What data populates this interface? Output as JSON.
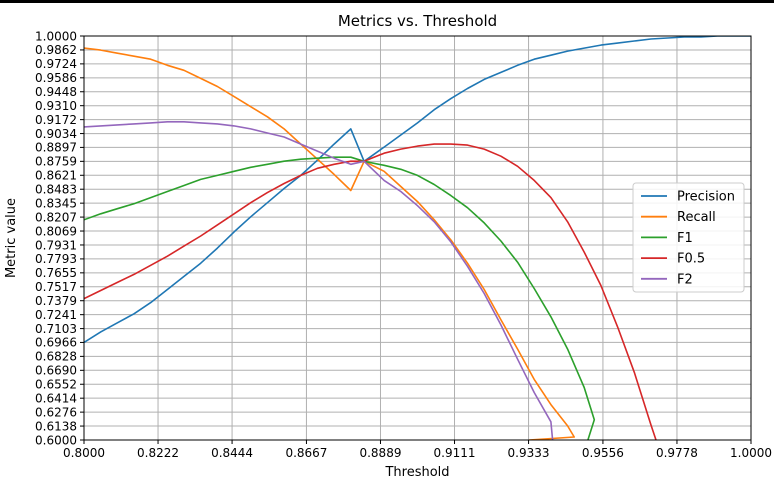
{
  "chart_data": {
    "type": "line",
    "title": "Metrics vs. Threshold",
    "xlabel": "Threshold",
    "ylabel": "Metric value",
    "xlim": [
      0.8,
      1.0
    ],
    "ylim": [
      0.6,
      1.0
    ],
    "grid": true,
    "legend_position": "center-right",
    "x_ticks": [
      "0.8000",
      "0.8222",
      "0.8444",
      "0.8667",
      "0.8889",
      "0.9111",
      "0.9333",
      "0.9556",
      "0.9778",
      "1.0000"
    ],
    "y_ticks": [
      "0.6000",
      "0.6138",
      "0.6276",
      "0.6414",
      "0.6552",
      "0.6690",
      "0.6828",
      "0.6966",
      "0.7103",
      "0.7241",
      "0.7379",
      "0.7517",
      "0.7655",
      "0.7793",
      "0.7931",
      "0.8069",
      "0.8207",
      "0.8345",
      "0.8483",
      "0.8621",
      "0.8759",
      "0.8897",
      "0.9034",
      "0.9172",
      "0.9310",
      "0.9448",
      "0.9586",
      "0.9724",
      "0.9862",
      "1.0000"
    ],
    "series": [
      {
        "name": "Precision",
        "color": "#1f77b4",
        "points": [
          [
            0.8,
            0.6966
          ],
          [
            0.805,
            0.707
          ],
          [
            0.81,
            0.716
          ],
          [
            0.815,
            0.725
          ],
          [
            0.82,
            0.736
          ],
          [
            0.825,
            0.749
          ],
          [
            0.83,
            0.762
          ],
          [
            0.835,
            0.775
          ],
          [
            0.84,
            0.79
          ],
          [
            0.845,
            0.806
          ],
          [
            0.85,
            0.821
          ],
          [
            0.855,
            0.835
          ],
          [
            0.86,
            0.849
          ],
          [
            0.865,
            0.862
          ],
          [
            0.87,
            0.877
          ],
          [
            0.875,
            0.893
          ],
          [
            0.88,
            0.908
          ],
          [
            0.884,
            0.8759
          ],
          [
            0.89,
            0.89
          ],
          [
            0.895,
            0.902
          ],
          [
            0.9,
            0.914
          ],
          [
            0.905,
            0.927
          ],
          [
            0.91,
            0.938
          ],
          [
            0.915,
            0.948
          ],
          [
            0.92,
            0.957
          ],
          [
            0.925,
            0.964
          ],
          [
            0.93,
            0.971
          ],
          [
            0.935,
            0.977
          ],
          [
            0.94,
            0.981
          ],
          [
            0.945,
            0.985
          ],
          [
            0.95,
            0.988
          ],
          [
            0.955,
            0.991
          ],
          [
            0.96,
            0.993
          ],
          [
            0.965,
            0.995
          ],
          [
            0.97,
            0.997
          ],
          [
            0.975,
            0.998
          ],
          [
            0.98,
            0.999
          ],
          [
            0.985,
            0.999
          ],
          [
            0.99,
            1.0
          ],
          [
            1.0,
            1.0
          ]
        ]
      },
      {
        "name": "Recall",
        "color": "#ff7f0e",
        "points": [
          [
            0.8,
            0.988
          ],
          [
            0.805,
            0.986
          ],
          [
            0.81,
            0.983
          ],
          [
            0.815,
            0.98
          ],
          [
            0.82,
            0.977
          ],
          [
            0.825,
            0.971
          ],
          [
            0.83,
            0.966
          ],
          [
            0.835,
            0.958
          ],
          [
            0.84,
            0.95
          ],
          [
            0.845,
            0.94
          ],
          [
            0.85,
            0.93
          ],
          [
            0.855,
            0.92
          ],
          [
            0.86,
            0.908
          ],
          [
            0.865,
            0.893
          ],
          [
            0.87,
            0.878
          ],
          [
            0.875,
            0.863
          ],
          [
            0.88,
            0.847
          ],
          [
            0.884,
            0.8759
          ],
          [
            0.89,
            0.866
          ],
          [
            0.895,
            0.851
          ],
          [
            0.9,
            0.836
          ],
          [
            0.905,
            0.818
          ],
          [
            0.91,
            0.798
          ],
          [
            0.915,
            0.775
          ],
          [
            0.92,
            0.749
          ],
          [
            0.925,
            0.719
          ],
          [
            0.93,
            0.69
          ],
          [
            0.935,
            0.66
          ],
          [
            0.94,
            0.635
          ],
          [
            0.945,
            0.614
          ],
          [
            0.947,
            0.603
          ],
          [
            0.9335,
            0.6
          ]
        ]
      },
      {
        "name": "F1",
        "color": "#2ca02c",
        "points": [
          [
            0.8,
            0.818
          ],
          [
            0.805,
            0.824
          ],
          [
            0.81,
            0.829
          ],
          [
            0.815,
            0.834
          ],
          [
            0.82,
            0.84
          ],
          [
            0.825,
            0.846
          ],
          [
            0.83,
            0.852
          ],
          [
            0.835,
            0.858
          ],
          [
            0.84,
            0.862
          ],
          [
            0.845,
            0.866
          ],
          [
            0.85,
            0.87
          ],
          [
            0.855,
            0.873
          ],
          [
            0.86,
            0.876
          ],
          [
            0.865,
            0.878
          ],
          [
            0.87,
            0.879
          ],
          [
            0.875,
            0.88
          ],
          [
            0.88,
            0.88
          ],
          [
            0.884,
            0.8759
          ],
          [
            0.89,
            0.872
          ],
          [
            0.895,
            0.868
          ],
          [
            0.9,
            0.862
          ],
          [
            0.905,
            0.853
          ],
          [
            0.91,
            0.842
          ],
          [
            0.915,
            0.83
          ],
          [
            0.92,
            0.815
          ],
          [
            0.925,
            0.797
          ],
          [
            0.93,
            0.776
          ],
          [
            0.935,
            0.75
          ],
          [
            0.94,
            0.722
          ],
          [
            0.945,
            0.69
          ],
          [
            0.95,
            0.652
          ],
          [
            0.953,
            0.62
          ],
          [
            0.9511,
            0.6
          ]
        ]
      },
      {
        "name": "F0.5",
        "color": "#d62728",
        "points": [
          [
            0.8,
            0.74
          ],
          [
            0.805,
            0.748
          ],
          [
            0.81,
            0.756
          ],
          [
            0.815,
            0.764
          ],
          [
            0.82,
            0.773
          ],
          [
            0.825,
            0.782
          ],
          [
            0.83,
            0.792
          ],
          [
            0.835,
            0.802
          ],
          [
            0.84,
            0.813
          ],
          [
            0.845,
            0.824
          ],
          [
            0.85,
            0.835
          ],
          [
            0.855,
            0.845
          ],
          [
            0.86,
            0.854
          ],
          [
            0.865,
            0.862
          ],
          [
            0.87,
            0.869
          ],
          [
            0.875,
            0.873
          ],
          [
            0.88,
            0.876
          ],
          [
            0.884,
            0.8759
          ],
          [
            0.89,
            0.884
          ],
          [
            0.895,
            0.888
          ],
          [
            0.9,
            0.891
          ],
          [
            0.905,
            0.893
          ],
          [
            0.91,
            0.893
          ],
          [
            0.915,
            0.892
          ],
          [
            0.92,
            0.888
          ],
          [
            0.925,
            0.881
          ],
          [
            0.93,
            0.871
          ],
          [
            0.935,
            0.857
          ],
          [
            0.94,
            0.84
          ],
          [
            0.945,
            0.816
          ],
          [
            0.95,
            0.786
          ],
          [
            0.955,
            0.753
          ],
          [
            0.96,
            0.712
          ],
          [
            0.965,
            0.667
          ],
          [
            0.97,
            0.615
          ],
          [
            0.9715,
            0.6
          ]
        ]
      },
      {
        "name": "F2",
        "color": "#9467bd",
        "points": [
          [
            0.8,
            0.91
          ],
          [
            0.805,
            0.911
          ],
          [
            0.81,
            0.912
          ],
          [
            0.815,
            0.913
          ],
          [
            0.82,
            0.914
          ],
          [
            0.825,
            0.915
          ],
          [
            0.83,
            0.915
          ],
          [
            0.835,
            0.914
          ],
          [
            0.84,
            0.913
          ],
          [
            0.845,
            0.911
          ],
          [
            0.85,
            0.908
          ],
          [
            0.855,
            0.904
          ],
          [
            0.86,
            0.9
          ],
          [
            0.865,
            0.893
          ],
          [
            0.87,
            0.886
          ],
          [
            0.875,
            0.879
          ],
          [
            0.88,
            0.873
          ],
          [
            0.884,
            0.8759
          ],
          [
            0.89,
            0.857
          ],
          [
            0.895,
            0.846
          ],
          [
            0.9,
            0.832
          ],
          [
            0.905,
            0.816
          ],
          [
            0.91,
            0.796
          ],
          [
            0.915,
            0.772
          ],
          [
            0.92,
            0.745
          ],
          [
            0.925,
            0.714
          ],
          [
            0.93,
            0.68
          ],
          [
            0.935,
            0.647
          ],
          [
            0.94,
            0.618
          ],
          [
            0.9405,
            0.6
          ]
        ]
      }
    ]
  }
}
